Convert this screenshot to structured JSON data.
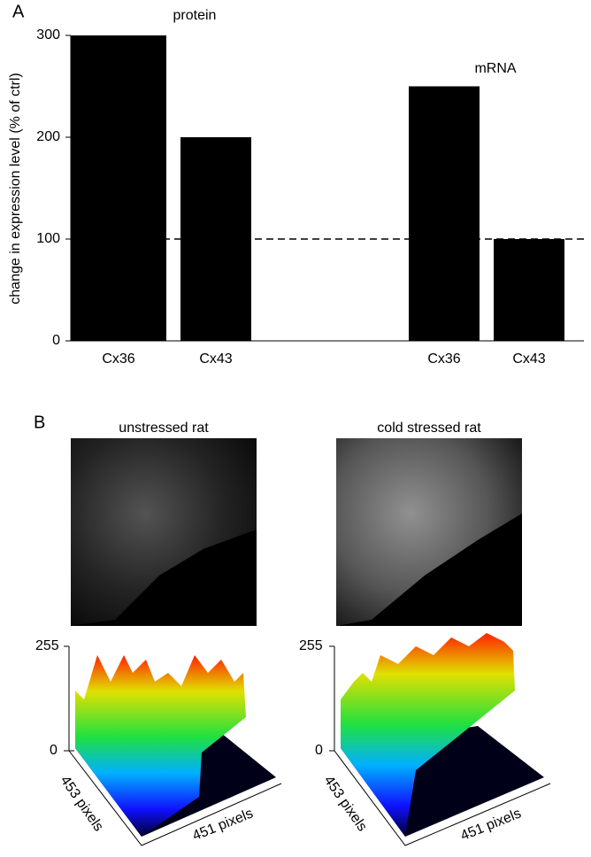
{
  "panel_labels": [
    "A",
    "B"
  ],
  "chart_data": {
    "type": "bar",
    "y_label": "change in expression level (% of ctrl)",
    "categories": [
      "Cx36",
      "Cx43",
      "Cx36",
      "Cx43"
    ],
    "values": [
      300,
      200,
      250,
      100
    ],
    "color": "#000000",
    "annotations": [
      "protein",
      "mRNA"
    ],
    "reference_line": 100,
    "ylim": [
      0,
      300
    ],
    "yticks": [
      0,
      100,
      200,
      300
    ]
  },
  "panel_b": {
    "titles": [
      "unstressed rat",
      "cold stressed rat"
    ],
    "z_ticks": [
      "255",
      "0"
    ],
    "x_axis": "451 pixels",
    "y_axis": "453 pixels"
  }
}
